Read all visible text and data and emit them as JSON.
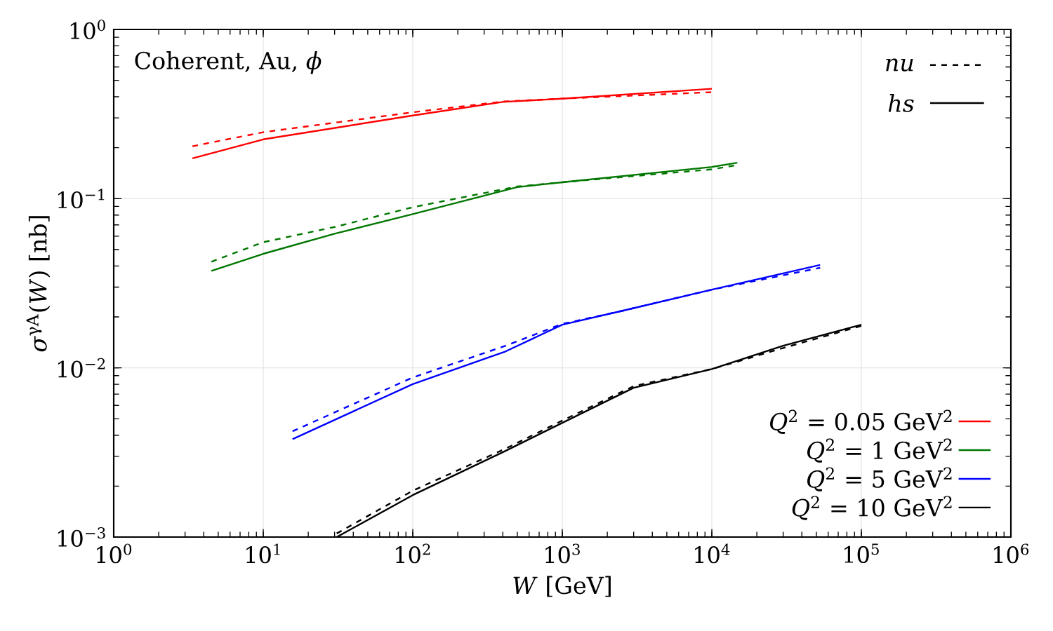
{
  "chart_data": {
    "type": "line",
    "xlabel": "*W* [GeV]",
    "ylabel": "*σ*$^{γA}$(*W*) [nb]",
    "annotations": [
      "Coherent, Au, *ϕ*",
      "*nu*",
      "*hs*"
    ],
    "log": "xy",
    "grid": true,
    "legend": "bottom right",
    "xlim": [
      1,
      1000000
    ],
    "ylim": [
      0.001,
      1
    ],
    "xticks": [
      {
        "value": 1,
        "label": "10$^{0}$"
      },
      {
        "value": 10,
        "label": "10$^{1}$"
      },
      {
        "value": 100,
        "label": "10$^{2}$"
      },
      {
        "value": 1000,
        "label": "10$^{3}$"
      },
      {
        "value": 10000,
        "label": "10$^{4}$"
      },
      {
        "value": 100000,
        "label": "10$^{5}$"
      },
      {
        "value": 1000000,
        "label": "10$^{6}$"
      }
    ],
    "yticks": [
      {
        "value": 0.001,
        "label": "10$^{−3}$"
      },
      {
        "value": 0.01,
        "label": "10$^{−2}$"
      },
      {
        "value": 0.1,
        "label": "10$^{−1}$"
      },
      {
        "value": 1,
        "label": "10$^{0}$"
      }
    ],
    "series": [
      {
        "color": "#ff0000",
        "line_style": "dashed",
        "x": [
          3.36,
          10,
          100,
          400,
          1000,
          10000
        ],
        "values": [
          0.204,
          0.247,
          0.324,
          0.375,
          0.39,
          0.426
        ]
      },
      {
        "name": "*Q*$^{2}$ = 0.05 GeV$^{2}$",
        "color": "#ff0000",
        "line_style": "solid",
        "x": [
          3.36,
          10,
          100,
          400,
          1000,
          10000
        ],
        "values": [
          0.173,
          0.224,
          0.31,
          0.373,
          0.39,
          0.446
        ]
      },
      {
        "color": "#007700",
        "line_style": "dashed",
        "x": [
          4.5,
          10,
          30,
          100,
          500,
          1000,
          10000,
          14800
        ],
        "values": [
          0.0424,
          0.0553,
          0.068,
          0.089,
          0.118,
          0.125,
          0.149,
          0.158
        ]
      },
      {
        "name": "*Q*$^{2}$ = 1 GeV$^{2}$",
        "color": "#007700",
        "line_style": "solid",
        "x": [
          4.5,
          10,
          30,
          100,
          500,
          1000,
          10000,
          14800
        ],
        "values": [
          0.0374,
          0.0472,
          0.062,
          0.081,
          0.117,
          0.125,
          0.154,
          0.163
        ]
      },
      {
        "color": "#0000ff",
        "line_style": "dashed",
        "x": [
          15.7,
          100,
          417,
          1000,
          2500,
          10000,
          53000
        ],
        "values": [
          0.00422,
          0.00877,
          0.0135,
          0.0182,
          0.0217,
          0.029,
          0.039
        ]
      },
      {
        "name": "*Q*$^{2}$ = 5 GeV$^{2}$",
        "color": "#0000ff",
        "line_style": "solid",
        "x": [
          15.7,
          100,
          417,
          1000,
          2500,
          10000,
          53000
        ],
        "values": [
          0.00379,
          0.00802,
          0.0125,
          0.018,
          0.0217,
          0.029,
          0.0406
        ]
      },
      {
        "color": "#000000",
        "line_style": "dashed",
        "x": [
          31,
          100,
          417,
          1000,
          3000,
          10000,
          30000,
          100000
        ],
        "values": [
          0.00105,
          0.00188,
          0.00333,
          0.00488,
          0.0078,
          0.00984,
          0.0131,
          0.0177
        ]
      },
      {
        "name": "*Q*$^{2}$ = 10 GeV$^{2}$",
        "color": "#000000",
        "line_style": "solid",
        "x": [
          31,
          100,
          417,
          1000,
          3000,
          10000,
          30000,
          100000
        ],
        "values": [
          0.001,
          0.00177,
          0.00323,
          0.00473,
          0.00762,
          0.00984,
          0.0135,
          0.018
        ]
      }
    ]
  }
}
